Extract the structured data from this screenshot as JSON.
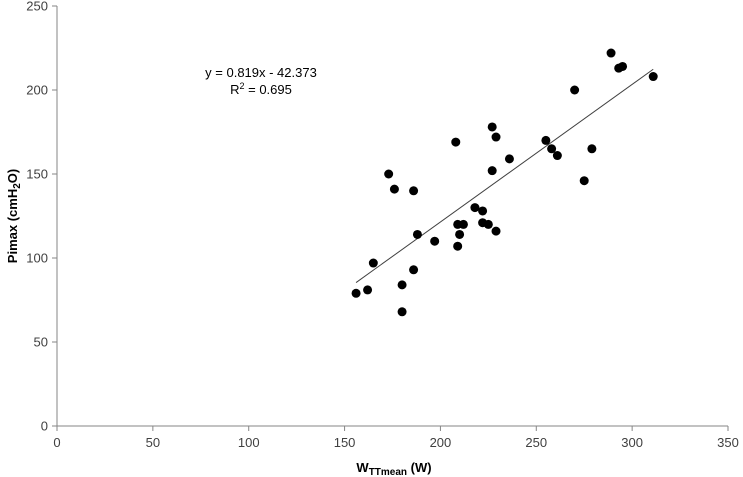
{
  "chart_data": {
    "type": "scatter",
    "xlabel": {
      "main": "W",
      "sub": "TTmean",
      "unit": " (W)"
    },
    "ylabel": {
      "pre": "Pimax (cmH",
      "sub": "2",
      "post": "O)"
    },
    "xlim": [
      0,
      350
    ],
    "ylim": [
      0,
      250
    ],
    "x_ticks": [
      0,
      50,
      100,
      150,
      200,
      250,
      300,
      350
    ],
    "y_ticks": [
      0,
      50,
      100,
      150,
      200,
      250
    ],
    "grid": false,
    "legend": "none",
    "marker_color": "#000000",
    "trendline": {
      "slope": 0.819,
      "intercept": -42.373,
      "x_range": [
        156,
        311
      ],
      "color": "#404040"
    },
    "equation_text": "y = 0.819x - 42.373",
    "r2_label": {
      "pre": "R",
      "sup": "2",
      "post": " = 0.695"
    },
    "points": [
      {
        "x": 156,
        "y": 79
      },
      {
        "x": 162,
        "y": 81
      },
      {
        "x": 165,
        "y": 97
      },
      {
        "x": 173,
        "y": 150
      },
      {
        "x": 176,
        "y": 141
      },
      {
        "x": 180,
        "y": 84
      },
      {
        "x": 180,
        "y": 68
      },
      {
        "x": 186,
        "y": 93
      },
      {
        "x": 186,
        "y": 140
      },
      {
        "x": 188,
        "y": 114
      },
      {
        "x": 197,
        "y": 110
      },
      {
        "x": 208,
        "y": 169
      },
      {
        "x": 209,
        "y": 120
      },
      {
        "x": 209,
        "y": 107
      },
      {
        "x": 210,
        "y": 114
      },
      {
        "x": 212,
        "y": 120
      },
      {
        "x": 218,
        "y": 130
      },
      {
        "x": 222,
        "y": 128
      },
      {
        "x": 222,
        "y": 121
      },
      {
        "x": 225,
        "y": 120
      },
      {
        "x": 227,
        "y": 178
      },
      {
        "x": 227,
        "y": 152
      },
      {
        "x": 229,
        "y": 172
      },
      {
        "x": 229,
        "y": 116
      },
      {
        "x": 236,
        "y": 159
      },
      {
        "x": 255,
        "y": 170
      },
      {
        "x": 258,
        "y": 165
      },
      {
        "x": 261,
        "y": 161
      },
      {
        "x": 270,
        "y": 200
      },
      {
        "x": 275,
        "y": 146
      },
      {
        "x": 279,
        "y": 165
      },
      {
        "x": 289,
        "y": 222
      },
      {
        "x": 293,
        "y": 213
      },
      {
        "x": 295,
        "y": 214
      },
      {
        "x": 311,
        "y": 208
      }
    ]
  }
}
